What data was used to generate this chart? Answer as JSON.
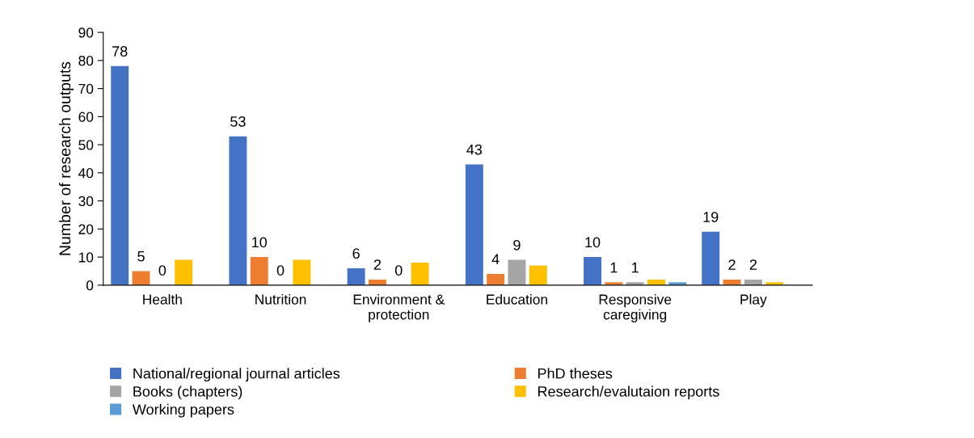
{
  "chart_data": {
    "type": "bar",
    "ylabel": "Number of research outputs",
    "categories": [
      "Health",
      "Nutrition",
      "Environment &\nprotection",
      "Education",
      "Responsive\ncaregiving",
      "Play"
    ],
    "series": [
      {
        "name": "National/regional journal articles",
        "color": "#4472c4",
        "values": [
          78,
          53,
          6,
          43,
          10,
          19
        ],
        "value_labels": [
          "78",
          "53",
          "6",
          "43",
          "10",
          "19"
        ]
      },
      {
        "name": "PhD theses",
        "color": "#ed7d31",
        "values": [
          5,
          10,
          2,
          4,
          1,
          2
        ],
        "value_labels": [
          "5",
          "10",
          "2",
          "4",
          "1",
          "2"
        ]
      },
      {
        "name": "Books (chapters)",
        "color": "#a5a5a5",
        "values": [
          0,
          0,
          0,
          9,
          1,
          2
        ],
        "value_labels": [
          "0",
          "0",
          "0",
          "9",
          "1",
          "2"
        ]
      },
      {
        "name": "Research/evalutaion reports",
        "color": "#ffc000",
        "values": [
          9,
          9,
          8,
          7,
          2,
          1
        ]
      },
      {
        "name": "Working papers",
        "color": "#5b9bd5",
        "values": [
          0,
          0,
          0,
          0,
          1,
          0
        ]
      }
    ],
    "ylim": [
      0,
      90
    ],
    "yticks": [
      0,
      10,
      20,
      30,
      40,
      50,
      60,
      70,
      80,
      90
    ],
    "grid": false,
    "legend": "bottom"
  }
}
